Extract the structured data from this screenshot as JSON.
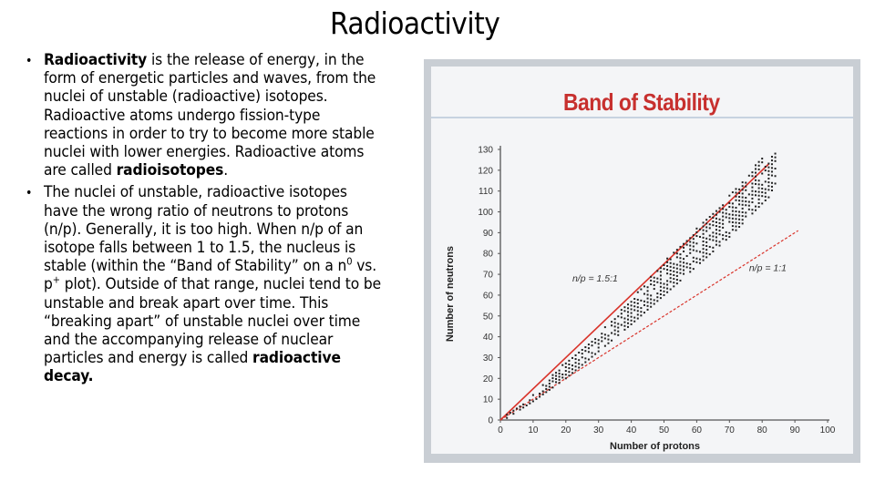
{
  "slide": {
    "title": "Radioactivity",
    "bullets": [
      {
        "bold_lead": "Radioactivity",
        "text_1": " is the release of energy, in the form of energetic particles and waves, from the nuclei of unstable (radioactive) isotopes.  Radioactive atoms undergo fission-type reactions in order to try to become more stable nuclei with lower energies. Radioactive atoms are called ",
        "bold_term": "radioisotopes",
        "text_2": "."
      },
      {
        "text_1": "The nuclei of unstable, radioactive isotopes have the wrong ratio of neutrons to protons (n/p).  Generally, it is too high.  When n/p of an isotope falls between 1 to 1.5, the nucleus is stable (within the “Band of Stability” on a n",
        "sup_1": "0",
        "text_2": " vs. p",
        "sup_2": "+",
        "text_3": " plot).  Outside of that range, nuclei tend to be unstable and break apart over time.  This “breaking apart” of unstable nuclei over time and the accompanying release of nuclear particles and energy is called ",
        "bold_term": "radioactive decay.",
        "bullet_symbol": "•"
      }
    ]
  },
  "colors": {
    "title_red": "#c7302e",
    "axis": "#555555",
    "red_line": "#d9342b",
    "dot": "#222222"
  },
  "chart_data": {
    "type": "scatter",
    "title": "Band of Stability",
    "xlabel": "Number of protons",
    "ylabel": "Number of neutrons",
    "xlim": [
      0,
      100
    ],
    "ylim": [
      0,
      130
    ],
    "x_ticks": [
      "0",
      "10",
      "20",
      "30",
      "40",
      "50",
      "60",
      "70",
      "80",
      "90",
      "100"
    ],
    "y_ticks": [
      "0",
      "10",
      "20",
      "30",
      "40",
      "50",
      "60",
      "70",
      "80",
      "90",
      "100",
      "110",
      "120",
      "130"
    ],
    "reference_lines": [
      {
        "label": "n/p = 1.5:1",
        "slope": 1.5,
        "x_end": 82,
        "style": "solid"
      },
      {
        "label": "n/p = 1:1",
        "slope": 1.0,
        "x_end": 91,
        "style": "dashed"
      }
    ],
    "band": [
      {
        "z": 2,
        "n_min": 1,
        "n_max": 3
      },
      {
        "z": 10,
        "n_min": 9,
        "n_max": 12
      },
      {
        "z": 20,
        "n_min": 20,
        "n_max": 28
      },
      {
        "z": 30,
        "n_min": 33,
        "n_max": 42
      },
      {
        "z": 40,
        "n_min": 46,
        "n_max": 58
      },
      {
        "z": 50,
        "n_min": 60,
        "n_max": 76
      },
      {
        "z": 60,
        "n_min": 74,
        "n_max": 92
      },
      {
        "z": 70,
        "n_min": 88,
        "n_max": 108
      },
      {
        "z": 80,
        "n_min": 104,
        "n_max": 126
      },
      {
        "z": 84,
        "n_min": 110,
        "n_max": 128
      }
    ]
  }
}
